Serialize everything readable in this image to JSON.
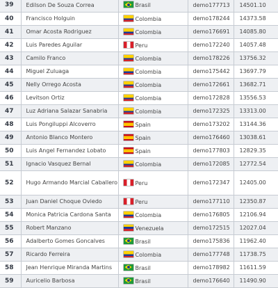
{
  "rows": [
    {
      "rank": "39",
      "name": "Edilson De Souza Correa",
      "country": "Brasil",
      "flag": "brasil-flag-icon",
      "login": "demo177713",
      "score": "14501.10"
    },
    {
      "rank": "40",
      "name": "Francisco Holguin",
      "country": "Colombia",
      "flag": "colombia-flag-icon",
      "login": "demo178244",
      "score": "14373.58"
    },
    {
      "rank": "41",
      "name": "Omar Acosta Rodriguez",
      "country": "Colombia",
      "flag": "colombia-flag-icon",
      "login": "demo176691",
      "score": "14085.80"
    },
    {
      "rank": "42",
      "name": "Luis Paredes Aguilar",
      "country": "Peru",
      "flag": "peru-flag-icon",
      "login": "demo172240",
      "score": "14057.48"
    },
    {
      "rank": "43",
      "name": "Camilo Franco",
      "country": "Colombia",
      "flag": "colombia-flag-icon",
      "login": "demo178226",
      "score": "13756.32"
    },
    {
      "rank": "44",
      "name": "Miguel Zuluaga",
      "country": "Colombia",
      "flag": "colombia-flag-icon",
      "login": "demo175442",
      "score": "13697.79"
    },
    {
      "rank": "45",
      "name": "Nelly Orrego Acosta",
      "country": "Colombia",
      "flag": "colombia-flag-icon",
      "login": "demo172661",
      "score": "13682.71"
    },
    {
      "rank": "46",
      "name": "Levitson Ortiz",
      "country": "Colombia",
      "flag": "colombia-flag-icon",
      "login": "demo172828",
      "score": "13556.53"
    },
    {
      "rank": "47",
      "name": "Luz Adriana Salazar Sanabria",
      "country": "Colombia",
      "flag": "colombia-flag-icon",
      "login": "demo172325",
      "score": "13313.00"
    },
    {
      "rank": "48",
      "name": "Luis Pongiluppi Alcoverro",
      "country": "Spain",
      "flag": "spain-flag-icon",
      "login": "demo173202",
      "score": "13144.36"
    },
    {
      "rank": "49",
      "name": "Antonio Blanco Montero",
      "country": "Spain",
      "flag": "spain-flag-icon",
      "login": "demo176460",
      "score": "13038.61"
    },
    {
      "rank": "50",
      "name": "Luis Angel Fernandez Lobato",
      "country": "Spain",
      "flag": "spain-flag-icon",
      "login": "demo177803",
      "score": "12829.35"
    },
    {
      "rank": "51",
      "name": "Ignacio Vasquez Bernal",
      "country": "Colombia",
      "flag": "colombia-flag-icon",
      "login": "demo172085",
      "score": "12772.54"
    },
    {
      "rank": "52",
      "name": "Hugo Armando Marcial Caballero",
      "country": "Peru",
      "flag": "peru-flag-icon",
      "login": "demo172347",
      "score": "12405.00"
    },
    {
      "rank": "53",
      "name": "Juan Daniel Choque Oviedo",
      "country": "Peru",
      "flag": "peru-flag-icon",
      "login": "demo177110",
      "score": "12350.87"
    },
    {
      "rank": "54",
      "name": "Monica Patricia Cardona Santa",
      "country": "Colombia",
      "flag": "colombia-flag-icon",
      "login": "demo176805",
      "score": "12106.94"
    },
    {
      "rank": "55",
      "name": "Robert Manzano",
      "country": "Venezuela",
      "flag": "venezuela-flag-icon",
      "login": "demo172515",
      "score": "12027.04"
    },
    {
      "rank": "56",
      "name": "Adalberto Gomes Goncalves",
      "country": "Brasil",
      "flag": "brasil-flag-icon",
      "login": "demo175836",
      "score": "11962.40"
    },
    {
      "rank": "57",
      "name": "Ricardo Ferreira",
      "country": "Colombia",
      "flag": "colombia-flag-icon",
      "login": "demo177748",
      "score": "11738.75"
    },
    {
      "rank": "58",
      "name": "Jean Henrique Miranda Martins",
      "country": "Brasil",
      "flag": "brasil-flag-icon",
      "login": "demo178982",
      "score": "11611.59"
    },
    {
      "rank": "59",
      "name": "Auricelio Barbosa",
      "country": "Brasil",
      "flag": "brasil-flag-icon",
      "login": "demo176640",
      "score": "11490.90"
    }
  ]
}
